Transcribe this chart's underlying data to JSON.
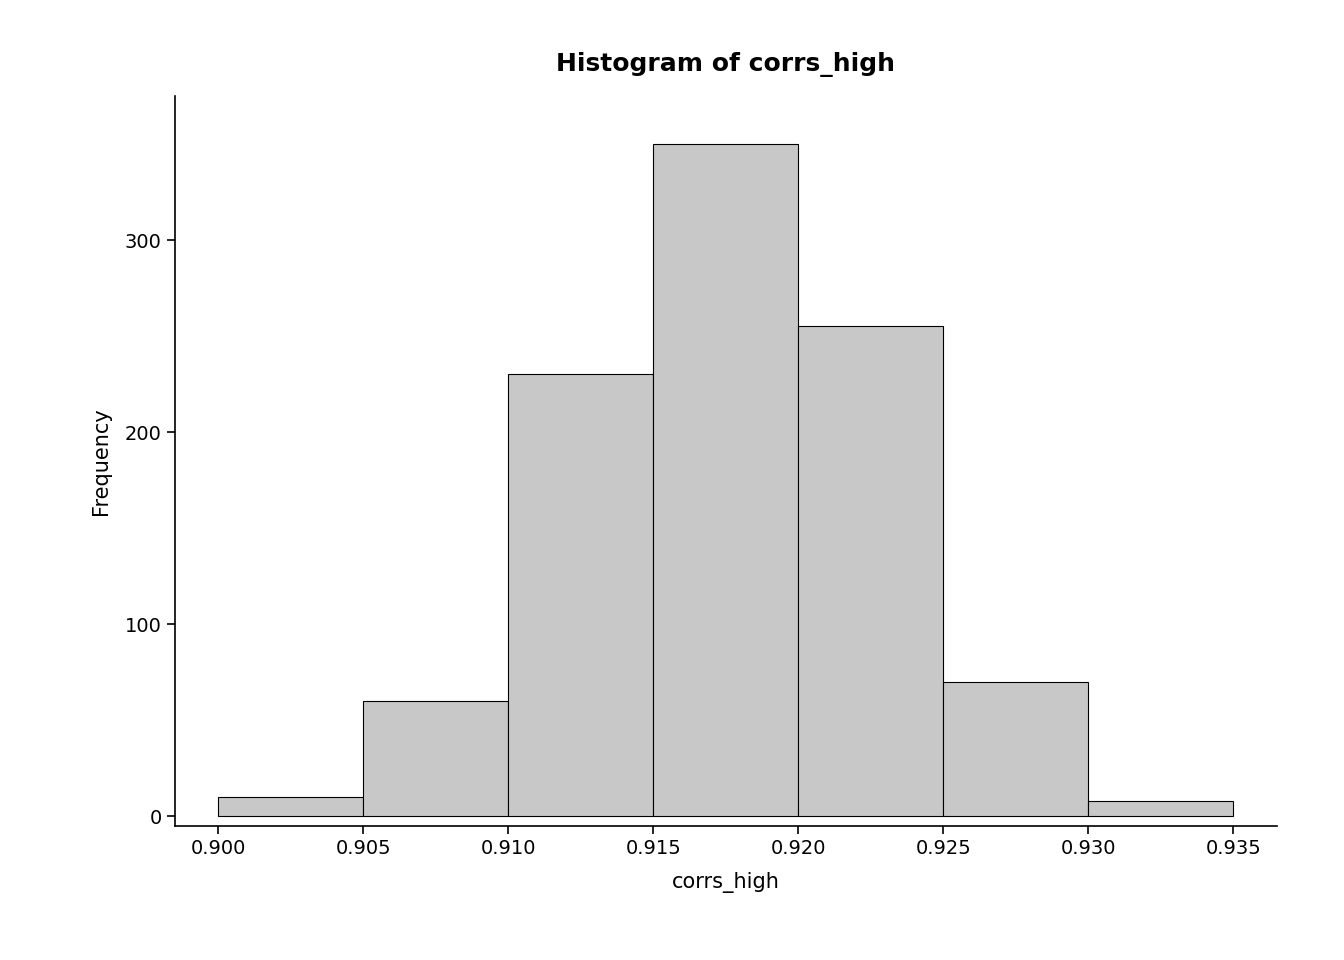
{
  "title": "Histogram of corrs_high",
  "xlabel": "corrs_high",
  "ylabel": "Frequency",
  "bin_edges": [
    0.9,
    0.905,
    0.91,
    0.915,
    0.92,
    0.925,
    0.93,
    0.935
  ],
  "frequencies": [
    10,
    60,
    230,
    350,
    255,
    70,
    8
  ],
  "bar_color": "#c8c8c8",
  "bar_edge_color": "#000000",
  "bar_linewidth": 0.8,
  "xlim": [
    0.8985,
    0.9365
  ],
  "ylim": [
    -5,
    375
  ],
  "xticks": [
    0.9,
    0.905,
    0.91,
    0.915,
    0.92,
    0.925,
    0.93,
    0.935
  ],
  "yticks": [
    0,
    100,
    200,
    300
  ],
  "title_fontsize": 18,
  "axis_label_fontsize": 15,
  "tick_fontsize": 14,
  "title_fontweight": "bold",
  "background_color": "#ffffff",
  "fig_width": 13.44,
  "fig_height": 9.6,
  "dpi": 100
}
